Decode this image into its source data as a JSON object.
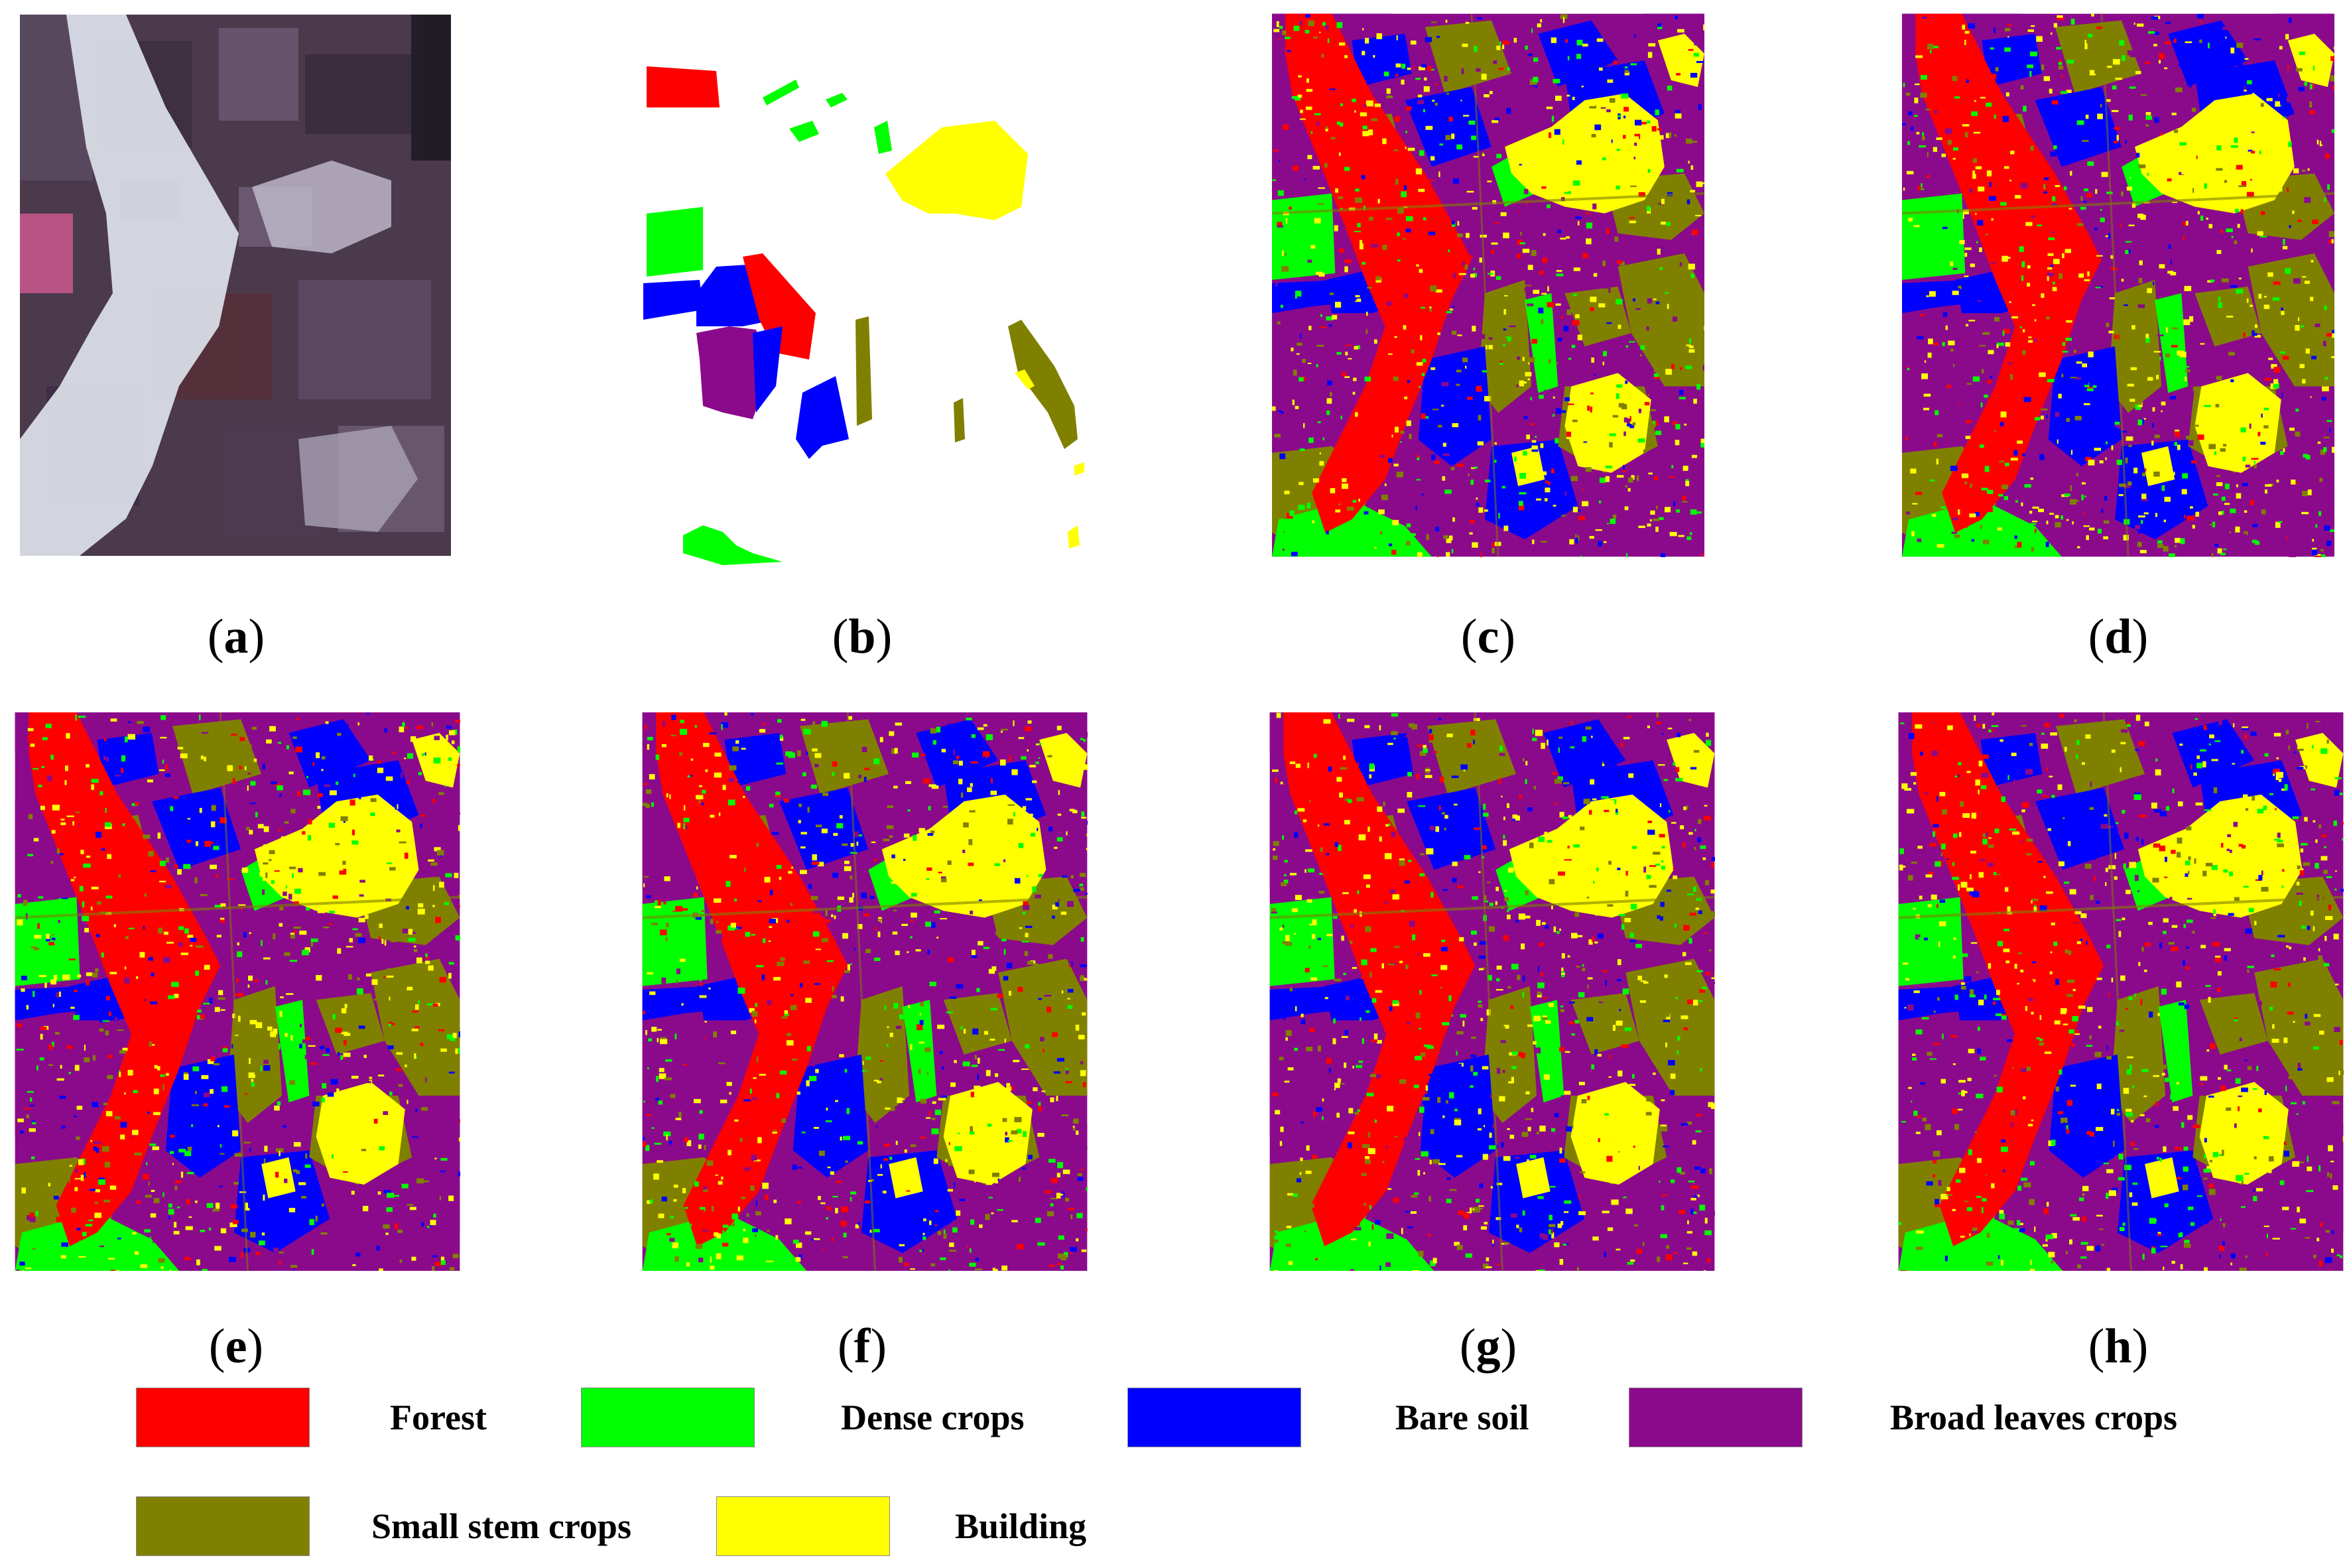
{
  "figure": {
    "panels": [
      {
        "id": "a",
        "caption": "a",
        "kind": "sar-image"
      },
      {
        "id": "b",
        "caption": "b",
        "kind": "ground-truth"
      },
      {
        "id": "c",
        "caption": "c",
        "kind": "classification-map"
      },
      {
        "id": "d",
        "caption": "d",
        "kind": "classification-map"
      },
      {
        "id": "e",
        "caption": "e",
        "kind": "classification-map"
      },
      {
        "id": "f",
        "caption": "f",
        "kind": "classification-map"
      },
      {
        "id": "g",
        "caption": "g",
        "kind": "classification-map"
      },
      {
        "id": "h",
        "caption": "h",
        "kind": "classification-map"
      }
    ]
  },
  "legend": {
    "items": [
      {
        "label": "Forest",
        "color": "#ff0000"
      },
      {
        "label": "Dense crops",
        "color": "#00ff00"
      },
      {
        "label": "Bare soil",
        "color": "#0000ff"
      },
      {
        "label": "Broad leaves crops",
        "color": "#8b0a8b"
      },
      {
        "label": "Small stem crops",
        "color": "#808000"
      },
      {
        "label": "Building",
        "color": "#ffff00"
      }
    ]
  }
}
